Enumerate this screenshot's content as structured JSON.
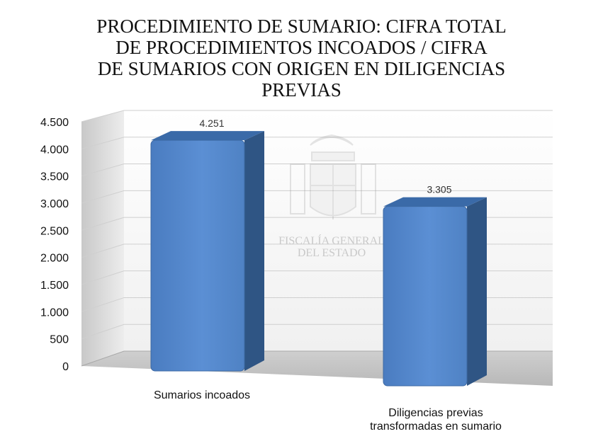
{
  "chart_data": {
    "type": "bar",
    "title_lines": [
      "PROCEDIMIENTO DE SUMARIO: CIFRA TOTAL",
      "DE PROCEDIMIENTOS INCOADOS / CIFRA",
      "DE SUMARIOS CON ORIGEN EN DILIGENCIAS",
      "PREVIAS"
    ],
    "categories": [
      [
        "Sumarios incoados"
      ],
      [
        "Diligencias previas",
        "transformadas en sumario"
      ]
    ],
    "values": [
      4251,
      3305
    ],
    "data_labels": [
      "4.251",
      "3.305"
    ],
    "ylim": [
      0,
      4500
    ],
    "yticks": [
      0,
      500,
      1000,
      1500,
      2000,
      2500,
      3000,
      3500,
      4000,
      4500
    ],
    "ytick_labels": [
      "0",
      "500",
      "1.000",
      "1.500",
      "2.000",
      "2.500",
      "3.000",
      "3.500",
      "4.000",
      "4.500"
    ],
    "grid": true,
    "bar_color": "#4f81bd",
    "watermark_text": [
      "FISCALÍA GENERAL",
      "DEL ESTADO"
    ]
  }
}
